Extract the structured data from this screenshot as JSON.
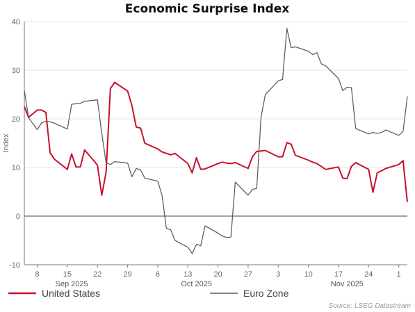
{
  "chart_data": {
    "type": "line",
    "title": "Economic Surprise Index",
    "ylabel": "Index",
    "xlabel": "",
    "ylim": [
      -10,
      40
    ],
    "yticks": [
      -10,
      0,
      10,
      20,
      30,
      40
    ],
    "grid": "horizontal",
    "zero_line": true,
    "x_start": "2025-09-05",
    "x_end": "2025-12-03",
    "x_tick_labels": [
      {
        "date": "2025-09-08",
        "label": "8"
      },
      {
        "date": "2025-09-15",
        "label": "15"
      },
      {
        "date": "2025-09-22",
        "label": "22"
      },
      {
        "date": "2025-09-29",
        "label": "29"
      },
      {
        "date": "2025-10-06",
        "label": "6"
      },
      {
        "date": "2025-10-13",
        "label": "13"
      },
      {
        "date": "2025-10-20",
        "label": "20"
      },
      {
        "date": "2025-10-27",
        "label": "27"
      },
      {
        "date": "2025-11-03",
        "label": "3"
      },
      {
        "date": "2025-11-10",
        "label": "10"
      },
      {
        "date": "2025-11-17",
        "label": "17"
      },
      {
        "date": "2025-11-24",
        "label": "24"
      },
      {
        "date": "2025-12-01",
        "label": "1"
      }
    ],
    "month_labels": [
      {
        "date": "2025-09-16",
        "label": "Sep 2025"
      },
      {
        "date": "2025-10-15",
        "label": "Oct 2025"
      },
      {
        "date": "2025-11-19",
        "label": "Nov 2025"
      }
    ],
    "legend_position": "bottom-left",
    "source": "Source: LSEG Datastream",
    "series": [
      {
        "name": "United States",
        "color": "#c8102e",
        "points": [
          [
            "2025-09-05",
            22.5
          ],
          [
            "2025-09-06",
            20.3
          ],
          [
            "2025-09-08",
            21.8
          ],
          [
            "2025-09-09",
            21.8
          ],
          [
            "2025-09-10",
            21.3
          ],
          [
            "2025-09-11",
            13.0
          ],
          [
            "2025-09-12",
            11.7
          ],
          [
            "2025-09-15",
            9.6
          ],
          [
            "2025-09-16",
            12.8
          ],
          [
            "2025-09-17",
            10.1
          ],
          [
            "2025-09-18",
            10.1
          ],
          [
            "2025-09-19",
            13.6
          ],
          [
            "2025-09-22",
            10.5
          ],
          [
            "2025-09-23",
            4.3
          ],
          [
            "2025-09-24",
            9.0
          ],
          [
            "2025-09-25",
            26.2
          ],
          [
            "2025-09-26",
            27.5
          ],
          [
            "2025-09-29",
            25.7
          ],
          [
            "2025-09-30",
            22.7
          ],
          [
            "2025-10-01",
            18.3
          ],
          [
            "2025-10-02",
            18.1
          ],
          [
            "2025-10-03",
            15.0
          ],
          [
            "2025-10-06",
            13.8
          ],
          [
            "2025-10-07",
            13.2
          ],
          [
            "2025-10-08",
            12.9
          ],
          [
            "2025-10-09",
            12.6
          ],
          [
            "2025-10-10",
            12.9
          ],
          [
            "2025-10-13",
            10.8
          ],
          [
            "2025-10-14",
            8.9
          ],
          [
            "2025-10-15",
            12.0
          ],
          [
            "2025-10-16",
            9.6
          ],
          [
            "2025-10-17",
            9.7
          ],
          [
            "2025-10-20",
            10.8
          ],
          [
            "2025-10-21",
            11.1
          ],
          [
            "2025-10-22",
            10.9
          ],
          [
            "2025-10-23",
            10.8
          ],
          [
            "2025-10-24",
            11.0
          ],
          [
            "2025-10-27",
            9.8
          ],
          [
            "2025-10-28",
            12.2
          ],
          [
            "2025-10-29",
            13.3
          ],
          [
            "2025-10-30",
            13.4
          ],
          [
            "2025-10-31",
            13.5
          ],
          [
            "2025-11-03",
            12.2
          ],
          [
            "2025-11-04",
            12.2
          ],
          [
            "2025-11-05",
            15.1
          ],
          [
            "2025-11-06",
            14.8
          ],
          [
            "2025-11-07",
            12.5
          ],
          [
            "2025-11-10",
            11.5
          ],
          [
            "2025-11-11",
            11.1
          ],
          [
            "2025-11-12",
            10.8
          ],
          [
            "2025-11-13",
            10.2
          ],
          [
            "2025-11-14",
            9.6
          ],
          [
            "2025-11-17",
            10.1
          ],
          [
            "2025-11-18",
            7.8
          ],
          [
            "2025-11-19",
            7.7
          ],
          [
            "2025-11-20",
            10.2
          ],
          [
            "2025-11-21",
            11.0
          ],
          [
            "2025-11-24",
            9.6
          ],
          [
            "2025-11-25",
            4.9
          ],
          [
            "2025-11-26",
            8.9
          ],
          [
            "2025-11-27",
            9.3
          ],
          [
            "2025-11-28",
            9.8
          ],
          [
            "2025-12-01",
            10.6
          ],
          [
            "2025-12-02",
            11.4
          ],
          [
            "2025-12-03",
            2.9
          ]
        ]
      },
      {
        "name": "Euro Zone",
        "color": "#5f5f5f",
        "points": [
          [
            "2025-09-05",
            25.8
          ],
          [
            "2025-09-06",
            20.2
          ],
          [
            "2025-09-08",
            17.8
          ],
          [
            "2025-09-09",
            19.2
          ],
          [
            "2025-09-10",
            19.5
          ],
          [
            "2025-09-11",
            19.4
          ],
          [
            "2025-09-12",
            19.1
          ],
          [
            "2025-09-15",
            17.9
          ],
          [
            "2025-09-16",
            23.0
          ],
          [
            "2025-09-17",
            23.1
          ],
          [
            "2025-09-18",
            23.2
          ],
          [
            "2025-09-19",
            23.6
          ],
          [
            "2025-09-22",
            23.9
          ],
          [
            "2025-09-23",
            17.0
          ],
          [
            "2025-09-24",
            11.0
          ],
          [
            "2025-09-25",
            10.6
          ],
          [
            "2025-09-26",
            11.2
          ],
          [
            "2025-09-29",
            10.9
          ],
          [
            "2025-09-30",
            8.1
          ],
          [
            "2025-10-01",
            9.8
          ],
          [
            "2025-10-02",
            9.5
          ],
          [
            "2025-10-03",
            7.8
          ],
          [
            "2025-10-06",
            7.2
          ],
          [
            "2025-10-07",
            4.3
          ],
          [
            "2025-10-08",
            -2.5
          ],
          [
            "2025-10-09",
            -2.8
          ],
          [
            "2025-10-10",
            -5.0
          ],
          [
            "2025-10-13",
            -6.4
          ],
          [
            "2025-10-14",
            -7.7
          ],
          [
            "2025-10-15",
            -5.8
          ],
          [
            "2025-10-16",
            -6.1
          ],
          [
            "2025-10-17",
            -2.0
          ],
          [
            "2025-10-20",
            -3.5
          ],
          [
            "2025-10-21",
            -4.1
          ],
          [
            "2025-10-22",
            -4.4
          ],
          [
            "2025-10-23",
            -4.3
          ],
          [
            "2025-10-24",
            7.0
          ],
          [
            "2025-10-27",
            4.3
          ],
          [
            "2025-10-28",
            5.5
          ],
          [
            "2025-10-29",
            5.7
          ],
          [
            "2025-10-30",
            20.3
          ],
          [
            "2025-10-31",
            25.0
          ],
          [
            "2025-11-03",
            27.8
          ],
          [
            "2025-11-04",
            28.1
          ],
          [
            "2025-11-05",
            38.6
          ],
          [
            "2025-11-06",
            34.6
          ],
          [
            "2025-11-07",
            34.8
          ],
          [
            "2025-11-10",
            33.9
          ],
          [
            "2025-11-11",
            33.2
          ],
          [
            "2025-11-12",
            33.6
          ],
          [
            "2025-11-13",
            31.3
          ],
          [
            "2025-11-14",
            30.9
          ],
          [
            "2025-11-17",
            28.3
          ],
          [
            "2025-11-18",
            25.8
          ],
          [
            "2025-11-19",
            26.5
          ],
          [
            "2025-11-20",
            26.4
          ],
          [
            "2025-11-21",
            18.0
          ],
          [
            "2025-11-24",
            16.9
          ],
          [
            "2025-11-25",
            17.2
          ],
          [
            "2025-11-26",
            17.0
          ],
          [
            "2025-11-27",
            17.2
          ],
          [
            "2025-11-28",
            17.7
          ],
          [
            "2025-12-01",
            16.6
          ],
          [
            "2025-12-02",
            17.4
          ],
          [
            "2025-12-03",
            24.6
          ]
        ]
      }
    ]
  }
}
